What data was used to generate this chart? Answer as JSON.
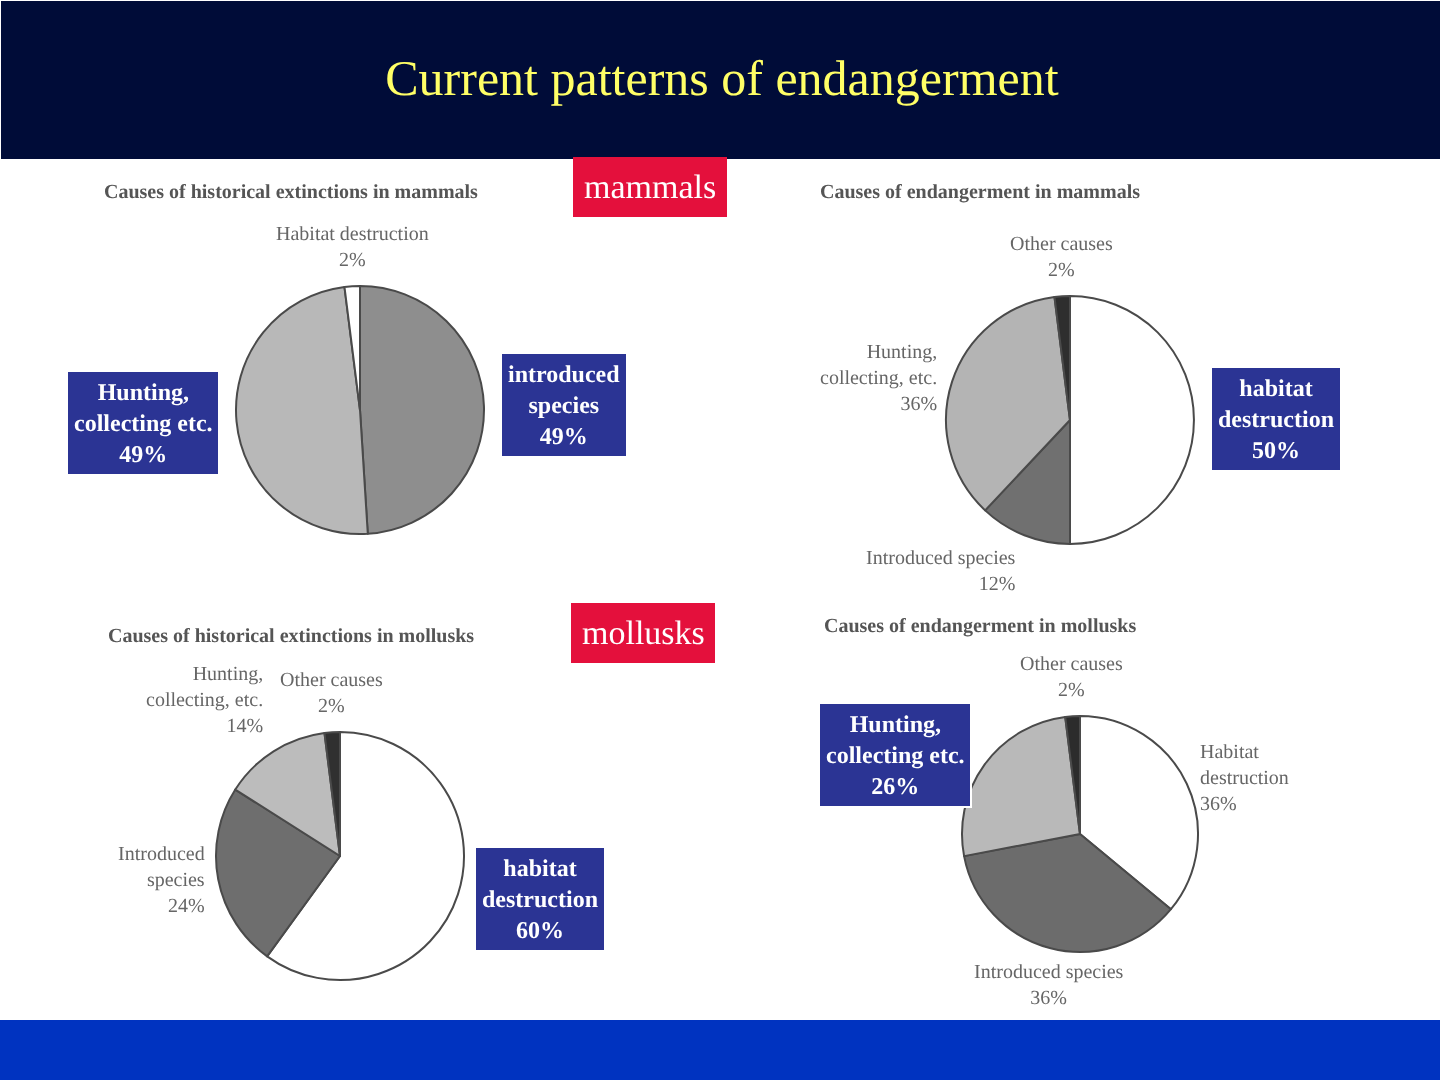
{
  "chart_data": [
    {
      "type": "other",
      "title": "Current patterns of endangerment",
      "annotations": [
        "mammals",
        "mollusks"
      ]
    },
    {
      "type": "pie",
      "title": "Causes of historical extinctions in mammals",
      "categories": [
        "introduced\nspecies",
        "Hunting,\ncollecting etc.",
        "Habitat destruction"
      ],
      "values": [
        49,
        49,
        2
      ],
      "value_labels": [
        "49%",
        "49%",
        "2%"
      ],
      "colors": [
        "#8e8e8e",
        "#b8b8b8",
        "#ffffff"
      ]
    },
    {
      "type": "pie",
      "title": "Causes of endangerment in mammals",
      "categories": [
        "habitat\ndestruction",
        "Introduced species",
        "Hunting,\ncollecting, etc.",
        "Other causes"
      ],
      "values": [
        50,
        12,
        36,
        2
      ],
      "value_labels": [
        "50%",
        "12%",
        "36%",
        "2%"
      ],
      "colors": [
        "#ffffff",
        "#707070",
        "#b4b4b4",
        "#2e2e2e"
      ]
    },
    {
      "type": "pie",
      "title": "Causes of historical extinctions in mollusks",
      "categories": [
        "habitat\ndestruction",
        "Introduced\nspecies",
        "Hunting,\ncollecting, etc.",
        "Other causes"
      ],
      "values": [
        60,
        24,
        14,
        2
      ],
      "value_labels": [
        "60%",
        "24%",
        "14%",
        "2%"
      ],
      "colors": [
        "#ffffff",
        "#6e6e6e",
        "#bcbcbc",
        "#303030"
      ]
    },
    {
      "type": "pie",
      "title": "Causes of endangerment in mollusks",
      "categories": [
        "Habitat\ndestruction",
        "Introduced species",
        "Hunting,\ncollecting etc.",
        "Other causes"
      ],
      "values": [
        36,
        36,
        26,
        2
      ],
      "value_labels": [
        "36%",
        "36%",
        "26%",
        "2%"
      ],
      "colors": [
        "#ffffff",
        "#6c6c6c",
        "#b9b9b9",
        "#2c2c2c"
      ]
    }
  ]
}
